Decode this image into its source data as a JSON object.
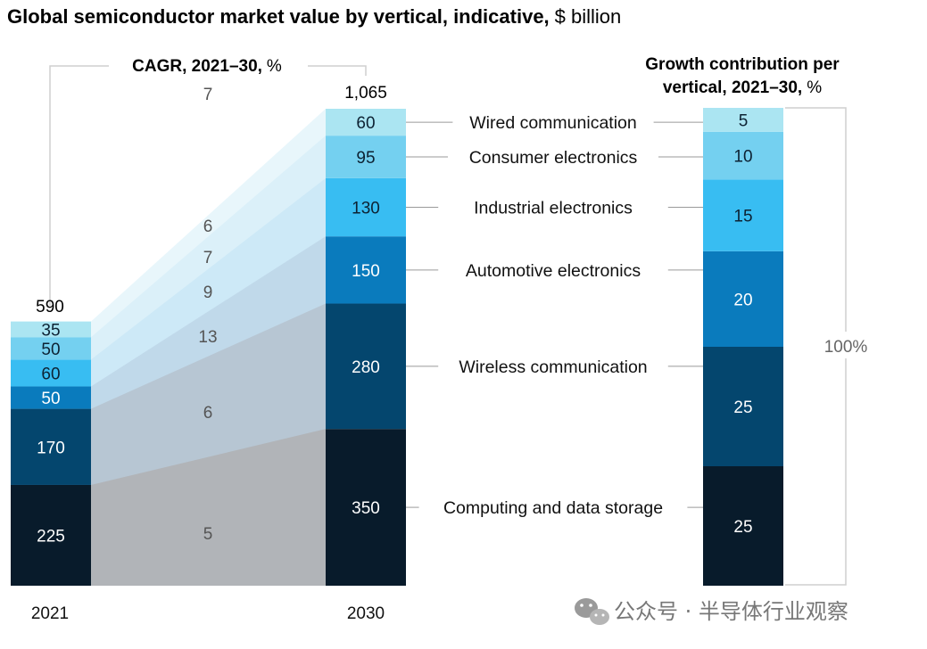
{
  "chart_data": {
    "type": "stacked-bar",
    "title": "Global semiconductor market value by vertical, indicative,",
    "title_unit": "$ billion",
    "cagr_header": "CAGR, 2021–30,",
    "cagr_unit": "%",
    "growth_header_line1": "Growth contribution per",
    "growth_header_line2": "vertical, 2021–30,",
    "growth_unit": "%",
    "growth_total": "100%",
    "years": [
      "2021",
      "2030"
    ],
    "totals": [
      "590",
      "1,065"
    ],
    "series": [
      {
        "name": "Computing and data storage",
        "v2021": 225,
        "v2030": 350,
        "cagr": 5,
        "growth": 25,
        "color": "#081b2b",
        "text_color": "#ffffff",
        "band_color": "#b1b4b8"
      },
      {
        "name": "Wireless communication",
        "v2021": 170,
        "v2030": 280,
        "cagr": 6,
        "growth": 25,
        "color": "#04466e",
        "text_color": "#ffffff",
        "band_color": "#b7c6d3"
      },
      {
        "name": "Automotive electronics",
        "v2021": 50,
        "v2030": 150,
        "cagr": 13,
        "growth": 20,
        "color": "#0a7bbd",
        "text_color": "#ffffff",
        "band_color": "#c0d9ea"
      },
      {
        "name": "Industrial electronics",
        "v2021": 60,
        "v2030": 130,
        "cagr": 9,
        "growth": 15,
        "color": "#38bdf2",
        "text_color": "#0d2233",
        "band_color": "#cde9f7"
      },
      {
        "name": "Consumer electronics",
        "v2021": 50,
        "v2030": 95,
        "cagr": 7,
        "growth": 10,
        "color": "#74d0f0",
        "text_color": "#0d2233",
        "band_color": "#dbf0f9"
      },
      {
        "name": "Wired communication",
        "v2021": 35,
        "v2030": 60,
        "cagr": 6,
        "growth": 5,
        "color": "#abe5f2",
        "text_color": "#0d2233",
        "band_color": "#e8f6fb"
      }
    ],
    "top_cagr": "7"
  },
  "watermark": {
    "text": "公众号 · 半导体行业观察",
    "icon": "wechat-icon"
  }
}
